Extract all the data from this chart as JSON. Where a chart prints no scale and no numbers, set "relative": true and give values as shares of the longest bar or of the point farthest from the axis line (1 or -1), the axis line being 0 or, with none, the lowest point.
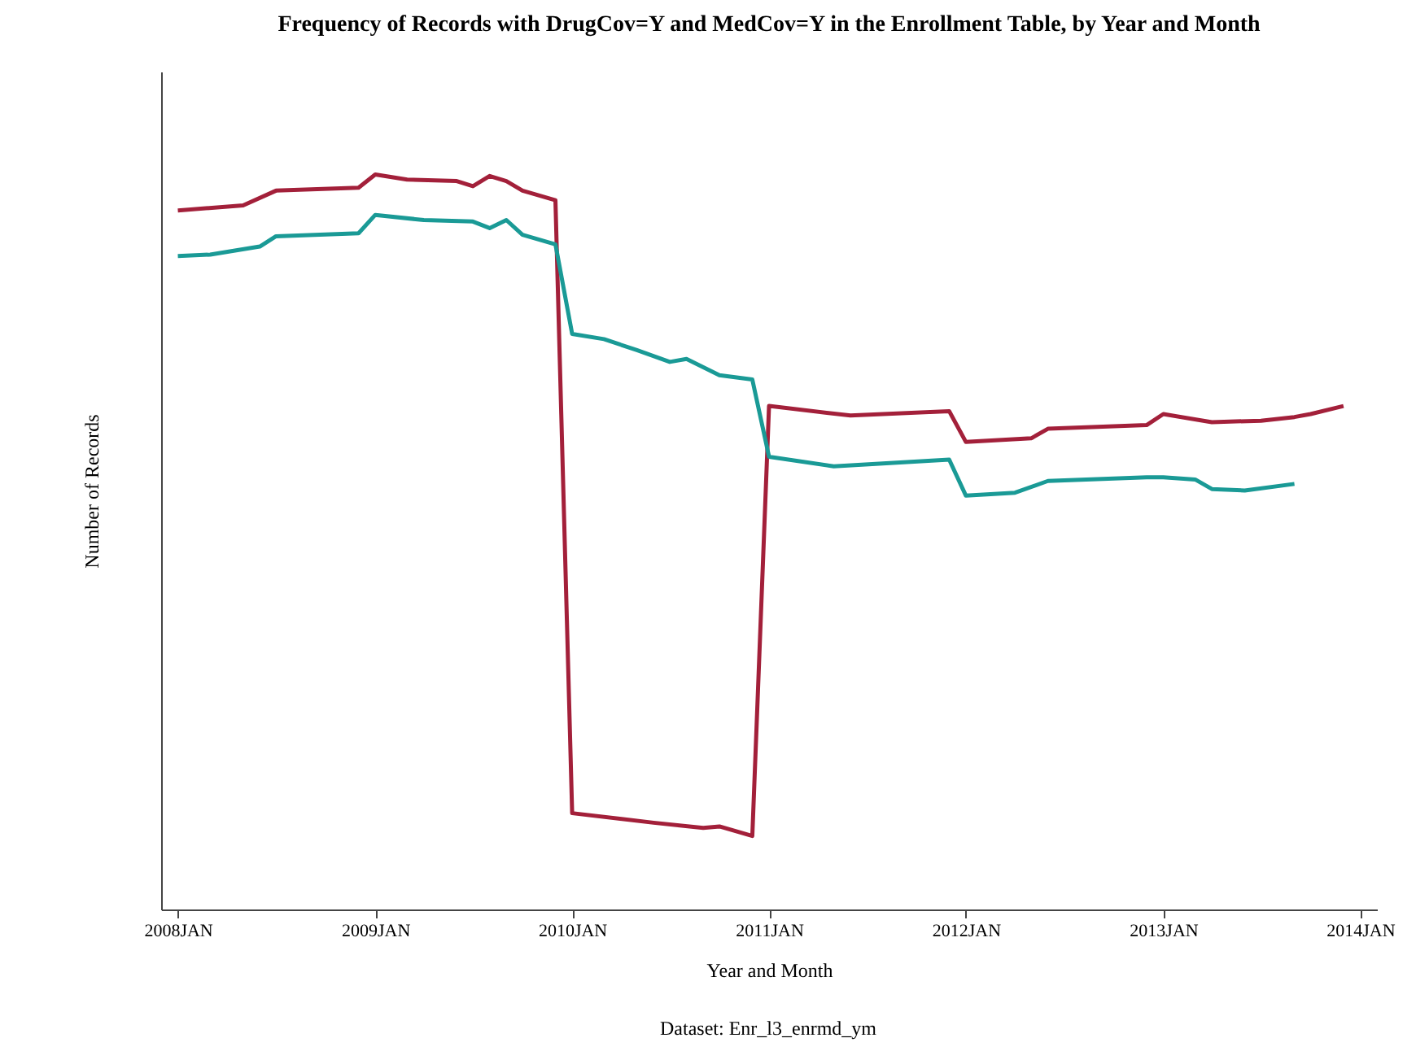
{
  "chart_data": {
    "type": "line",
    "title": "Frequency of Records with DrugCov=Y  and MedCov=Y in the Enrollment Table, by Year and Month",
    "xlabel": "Year and Month",
    "ylabel": "Number of Records",
    "annotations": [
      "Dataset: Enr_l3_enrmd_ym"
    ],
    "relative": true,
    "legend": false,
    "grid": false,
    "xlim": [
      "2007-12",
      "2014-02"
    ],
    "xticks": [
      {
        "value": "2008-01",
        "label": "2008JAN"
      },
      {
        "value": "2009-01",
        "label": "2009JAN"
      },
      {
        "value": "2010-01",
        "label": "2010JAN"
      },
      {
        "value": "2011-01",
        "label": "2011JAN"
      },
      {
        "value": "2012-01",
        "label": "2012JAN"
      },
      {
        "value": "2013-01",
        "label": "2013JAN"
      },
      {
        "value": "2014-01",
        "label": "2014JAN"
      }
    ],
    "series": [
      {
        "color": "#a3203a",
        "x": [
          "2008-01",
          "2008-05",
          "2008-07",
          "2008-12",
          "2009-01",
          "2009-03",
          "2009-06",
          "2009-07",
          "2009-08",
          "2009-09",
          "2009-10",
          "2009-12",
          "2010-01",
          "2010-06",
          "2010-09",
          "2010-10",
          "2010-12",
          "2011-01",
          "2011-06",
          "2011-12",
          "2012-01",
          "2012-05",
          "2012-06",
          "2012-12",
          "2013-01",
          "2013-04",
          "2013-07",
          "2013-09",
          "2013-10",
          "2013-12"
        ],
        "values": [
          0.951,
          0.958,
          0.978,
          0.982,
          1.0,
          0.993,
          0.991,
          0.984,
          0.998,
          0.991,
          0.978,
          0.965,
          0.131,
          0.118,
          0.111,
          0.113,
          0.1,
          0.685,
          0.672,
          0.678,
          0.636,
          0.641,
          0.654,
          0.659,
          0.674,
          0.663,
          0.665,
          0.67,
          0.674,
          0.685
        ]
      },
      {
        "color": "#1a9a96",
        "x": [
          "2008-01",
          "2008-03",
          "2008-06",
          "2008-07",
          "2008-12",
          "2009-01",
          "2009-04",
          "2009-07",
          "2009-08",
          "2009-09",
          "2009-10",
          "2009-12",
          "2010-01",
          "2010-03",
          "2010-05",
          "2010-07",
          "2010-08",
          "2010-10",
          "2010-12",
          "2011-01",
          "2011-05",
          "2011-12",
          "2012-01",
          "2012-04",
          "2012-06",
          "2012-12",
          "2013-01",
          "2013-03",
          "2013-04",
          "2013-06",
          "2013-09"
        ],
        "values": [
          0.889,
          0.891,
          0.902,
          0.916,
          0.92,
          0.945,
          0.938,
          0.936,
          0.927,
          0.938,
          0.918,
          0.905,
          0.783,
          0.776,
          0.761,
          0.745,
          0.749,
          0.727,
          0.721,
          0.616,
          0.603,
          0.612,
          0.563,
          0.567,
          0.583,
          0.588,
          0.588,
          0.585,
          0.572,
          0.57,
          0.579
        ]
      }
    ]
  }
}
